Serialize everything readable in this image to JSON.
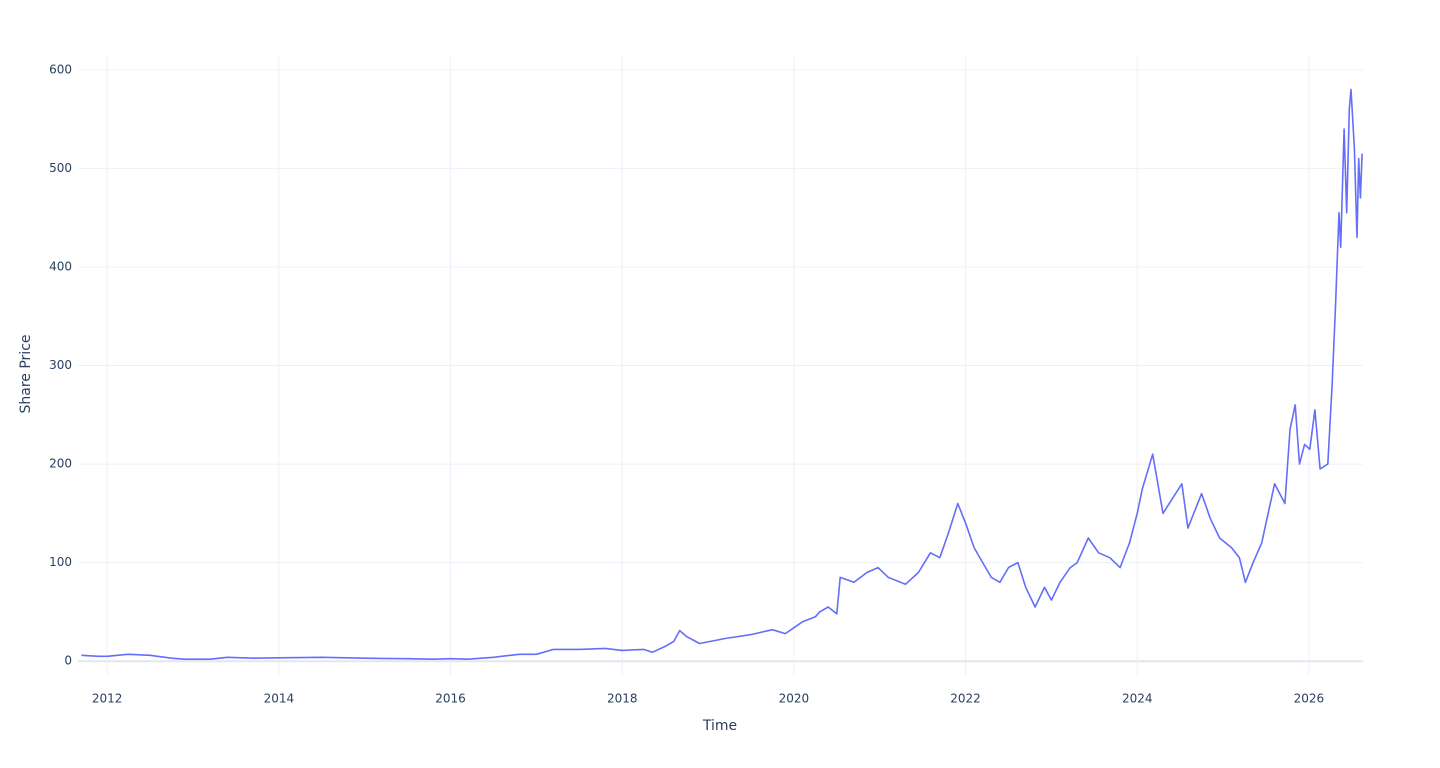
{
  "chart_data": {
    "type": "line",
    "x_label": "Time",
    "y_label": "Share Price",
    "x": [
      2011.7,
      2011.9,
      2012.0,
      2012.25,
      2012.5,
      2012.75,
      2012.9,
      2013.2,
      2013.4,
      2013.7,
      2014.0,
      2014.5,
      2015.0,
      2015.5,
      2015.8,
      2016.0,
      2016.2,
      2016.5,
      2016.8,
      2017.0,
      2017.2,
      2017.5,
      2017.8,
      2018.0,
      2018.25,
      2018.35,
      2018.5,
      2018.6,
      2018.67,
      2018.75,
      2018.9,
      2019.2,
      2019.5,
      2019.75,
      2019.9,
      2020.1,
      2020.25,
      2020.3,
      2020.4,
      2020.5,
      2020.54,
      2020.7,
      2020.85,
      2020.98,
      2021.1,
      2021.3,
      2021.45,
      2021.59,
      2021.7,
      2021.8,
      2021.91,
      2022.0,
      2022.1,
      2022.2,
      2022.3,
      2022.4,
      2022.5,
      2022.61,
      2022.7,
      2022.81,
      2022.92,
      2023.0,
      2023.1,
      2023.22,
      2023.3,
      2023.43,
      2023.55,
      2023.68,
      2023.8,
      2023.91,
      2024.0,
      2024.06,
      2024.18,
      2024.3,
      2024.41,
      2024.52,
      2024.59,
      2024.75,
      2024.85,
      2024.96,
      2025.1,
      2025.19,
      2025.26,
      2025.35,
      2025.45,
      2025.6,
      2025.72,
      2025.78,
      2025.84,
      2025.89,
      2025.95,
      2026.01,
      2026.07,
      2026.13,
      2026.22,
      2026.27,
      2026.31,
      2026.35,
      2026.37,
      2026.41,
      2026.44,
      2026.47,
      2026.49,
      2026.53,
      2026.56,
      2026.58,
      2026.6,
      2026.62
    ],
    "series": [
      {
        "name": "Share Price",
        "color": "#636efa",
        "values": [
          6,
          5,
          5,
          7,
          6,
          3,
          2,
          2,
          4,
          3,
          3.5,
          4,
          3,
          2.5,
          2,
          2.5,
          2,
          4,
          7,
          7,
          12,
          12,
          13,
          11,
          12,
          9,
          15,
          20,
          31,
          25,
          18,
          23,
          27,
          32,
          28,
          40,
          45,
          50,
          55,
          48,
          85,
          80,
          90,
          95,
          85,
          78,
          90,
          110,
          105,
          130,
          160,
          140,
          115,
          100,
          85,
          80,
          95,
          100,
          75,
          55,
          75,
          62,
          80,
          95,
          100,
          125,
          110,
          105,
          95,
          120,
          150,
          175,
          210,
          150,
          165,
          180,
          135,
          170,
          145,
          125,
          115,
          105,
          80,
          100,
          120,
          180,
          160,
          235,
          260,
          200,
          220,
          215,
          255,
          195,
          200,
          280,
          360,
          455,
          420,
          540,
          455,
          560,
          580,
          520,
          430,
          510,
          470,
          515
        ]
      }
    ],
    "xlim": [
      2011.66,
      2026.63
    ],
    "xticks": [
      2012,
      2014,
      2016,
      2018,
      2020,
      2022,
      2024,
      2026
    ],
    "ylim": [
      -14,
      613
    ],
    "yticks": [
      0,
      100,
      200,
      300,
      400,
      500,
      600
    ],
    "grid": true
  }
}
